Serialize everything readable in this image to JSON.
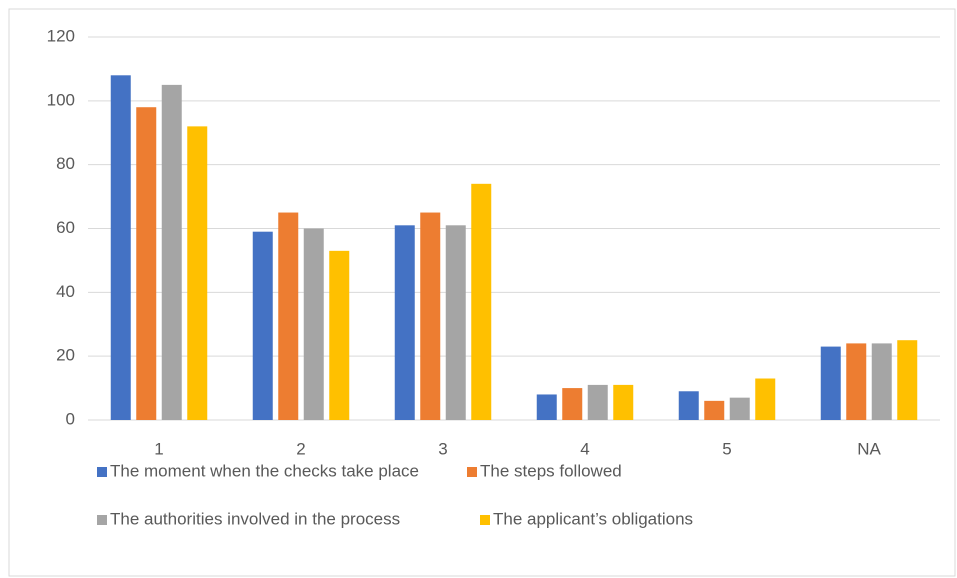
{
  "chart_data": {
    "type": "bar",
    "categories": [
      "1",
      "2",
      "3",
      "4",
      "5",
      "NA"
    ],
    "series": [
      {
        "name": "The moment when the checks take place",
        "color": "#4472c4",
        "values": [
          108,
          59,
          61,
          8,
          9,
          23
        ]
      },
      {
        "name": "The steps followed",
        "color": "#ed7d31",
        "values": [
          98,
          65,
          65,
          10,
          6,
          24
        ]
      },
      {
        "name": "The authorities involved in the process",
        "color": "#a5a5a5",
        "values": [
          105,
          60,
          61,
          11,
          7,
          24
        ]
      },
      {
        "name": "The applicant’s obligations",
        "color": "#ffc000",
        "values": [
          92,
          53,
          74,
          11,
          13,
          25
        ]
      }
    ],
    "ylim": [
      0,
      120
    ],
    "yticks": [
      0,
      20,
      40,
      60,
      80,
      100,
      120
    ],
    "grid": true,
    "legend": "bottom"
  }
}
